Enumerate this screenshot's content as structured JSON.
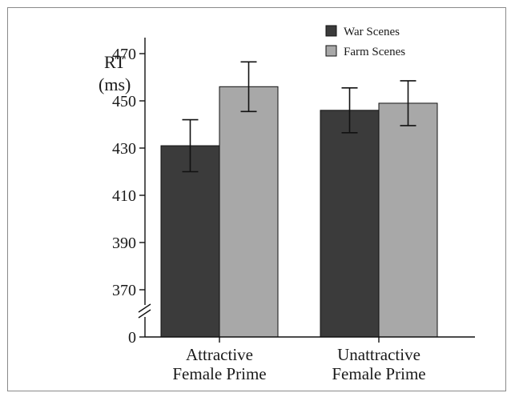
{
  "chart_data": {
    "type": "bar",
    "ylabel_line1": "RT",
    "ylabel_line2": "(ms)",
    "categories": [
      [
        "Attractive",
        "Female Prime"
      ],
      [
        "Unattractive",
        "Female Prime"
      ]
    ],
    "series": [
      {
        "name": "War Scenes",
        "color": "#3b3b3b",
        "values": [
          431,
          446
        ],
        "errors": [
          11,
          9.5
        ]
      },
      {
        "name": "Farm Scenes",
        "color": "#a8a8a8",
        "values": [
          456,
          449
        ],
        "errors": [
          10.5,
          9.5
        ]
      }
    ],
    "yticks": [
      "470",
      "450",
      "430",
      "410",
      "390",
      "370"
    ],
    "ytick_values": [
      470,
      450,
      430,
      410,
      390,
      370
    ],
    "yzero_label": "0",
    "ylim": [
      0,
      476
    ],
    "axis_break": true,
    "legend_position": "top-right",
    "grid": false
  }
}
